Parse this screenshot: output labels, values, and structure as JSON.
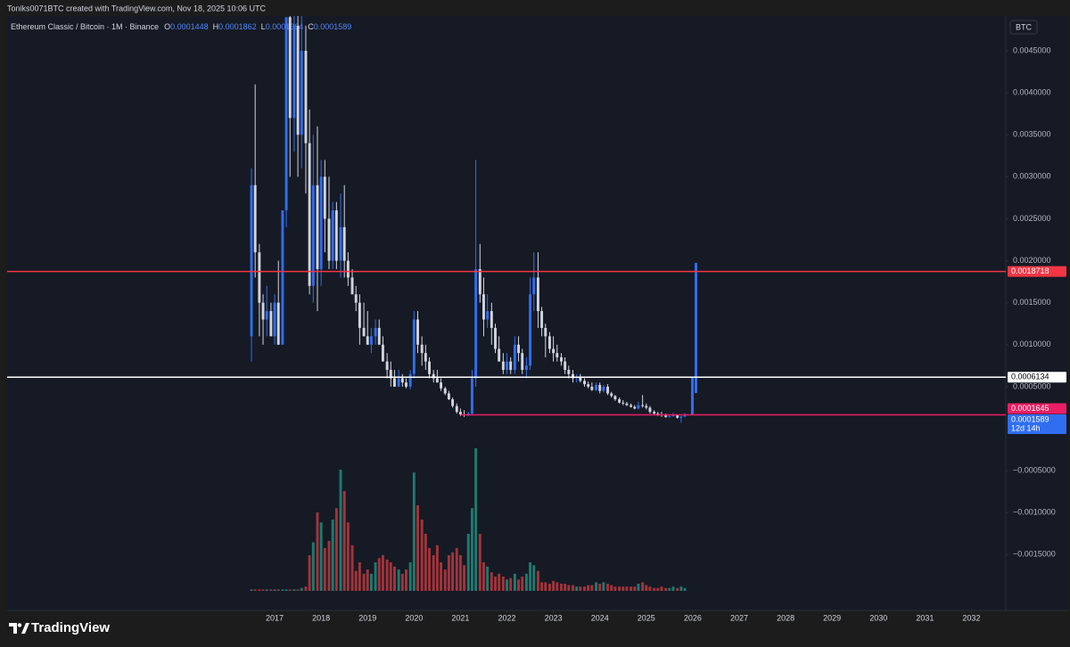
{
  "attribution": "Toniks0071BTC created with TradingView.com, Nov 18, 2025 10:06 UTC",
  "brand": "TradingView",
  "chart_data": {
    "type": "candlestick",
    "symbol": "Ethereum Classic / Bitcoin · 1M · Binance",
    "ohlc_labels": [
      "O",
      "H",
      "L",
      "C"
    ],
    "currency": "BTC",
    "countdown": "12d 14h",
    "up_color": "#2f6ef0",
    "down_color": "#d1d4dc",
    "volume_up_color": "#1f7a6f",
    "volume_down_color": "#a3343a",
    "xlim": [
      2011.24,
      2032.74
    ],
    "xticks": [
      2017,
      2018,
      2019,
      2020,
      2021,
      2022,
      2023,
      2024,
      2025,
      2026,
      2027,
      2028,
      2029,
      2030,
      2031,
      2032
    ],
    "ylim": [
      -0.002165,
      0.004914
    ],
    "yticks": [
      {
        "value": 0.0045,
        "label": "0.0045000"
      },
      {
        "value": 0.004,
        "label": "0.0040000"
      },
      {
        "value": 0.0035,
        "label": "0.0035000"
      },
      {
        "value": 0.003,
        "label": "0.0030000"
      },
      {
        "value": 0.0025,
        "label": "0.0025000"
      },
      {
        "value": 0.002,
        "label": "0.0020000"
      },
      {
        "value": 0.0015,
        "label": "0.0015000"
      },
      {
        "value": 0.001,
        "label": "0.0010000"
      },
      {
        "value": 0.0005,
        "label": "0.0005000"
      },
      {
        "value": -0.0005,
        "label": "−0.0005000"
      },
      {
        "value": -0.001,
        "label": "−0.0010000"
      },
      {
        "value": -0.0015,
        "label": "−0.0015000"
      }
    ],
    "levels": [
      {
        "value": 0.0018718,
        "color": "#f23645",
        "text_color": "#ffffff"
      },
      {
        "value": 0.0006134,
        "color": "#ffffff",
        "text_color": "#000000"
      },
      {
        "value": 0.0001645,
        "color": "#e91e63",
        "text_color": "#ffffff",
        "x_start": 2021.0
      }
    ],
    "candles": [
      {
        "x": 2016.5,
        "open": 0.0011,
        "high": 0.0031,
        "low": 0.0008,
        "close": 0.0029,
        "volume": 1
      },
      {
        "x": 2016.58,
        "open": 0.0029,
        "high": 0.0041,
        "low": 0.0018,
        "close": 0.0021,
        "volume": 1
      },
      {
        "x": 2016.67,
        "open": 0.0021,
        "high": 0.0022,
        "low": 0.0011,
        "close": 0.0015,
        "volume": 1
      },
      {
        "x": 2016.75,
        "open": 0.0015,
        "high": 0.0016,
        "low": 0.001,
        "close": 0.0013,
        "volume": 1
      },
      {
        "x": 2016.83,
        "open": 0.0013,
        "high": 0.0017,
        "low": 0.0011,
        "close": 0.0014,
        "volume": 1
      },
      {
        "x": 2016.92,
        "open": 0.0014,
        "high": 0.0015,
        "low": 0.0011,
        "close": 0.0011,
        "volume": 1
      },
      {
        "x": 2017,
        "open": 0.0011,
        "high": 0.0016,
        "low": 0.001,
        "close": 0.0015,
        "volume": 1
      },
      {
        "x": 2017.08,
        "open": 0.0015,
        "high": 0.002,
        "low": 0.001,
        "close": 0.001,
        "volume": 1
      },
      {
        "x": 2017.17,
        "open": 0.001,
        "high": 0.0026,
        "low": 0.001,
        "close": 0.0026,
        "volume": 1
      },
      {
        "x": 2017.25,
        "open": 0.0026,
        "high": 0.0049,
        "low": 0.0024,
        "close": 0.0049,
        "volume": 1
      },
      {
        "x": 2017.33,
        "open": 0.0049,
        "high": 0.0052,
        "low": 0.003,
        "close": 0.0037,
        "volume": 1
      },
      {
        "x": 2017.42,
        "open": 0.0037,
        "high": 0.0052,
        "low": 0.0033,
        "close": 0.0048,
        "volume": 1
      },
      {
        "x": 2017.5,
        "open": 0.0048,
        "high": 0.0052,
        "low": 0.003,
        "close": 0.0035,
        "volume": 1
      },
      {
        "x": 2017.58,
        "open": 0.0035,
        "high": 0.005,
        "low": 0.0031,
        "close": 0.0045,
        "volume": 2
      },
      {
        "x": 2017.67,
        "open": 0.0045,
        "high": 0.0048,
        "low": 0.0028,
        "close": 0.0034,
        "volume": 3
      },
      {
        "x": 2017.75,
        "open": 0.0034,
        "high": 0.0038,
        "low": 0.0016,
        "close": 0.0017,
        "volume": 25
      },
      {
        "x": 2017.83,
        "open": 0.0017,
        "high": 0.0035,
        "low": 0.0015,
        "close": 0.0029,
        "volume": 34
      },
      {
        "x": 2017.92,
        "open": 0.0029,
        "high": 0.0036,
        "low": 0.0014,
        "close": 0.0019,
        "volume": 55
      },
      {
        "x": 2018,
        "open": 0.0019,
        "high": 0.0032,
        "low": 0.0017,
        "close": 0.003,
        "volume": 48
      },
      {
        "x": 2018.08,
        "open": 0.003,
        "high": 0.0032,
        "low": 0.0021,
        "close": 0.0025,
        "volume": 30
      },
      {
        "x": 2018.17,
        "open": 0.0025,
        "high": 0.003,
        "low": 0.0019,
        "close": 0.002,
        "volume": 35
      },
      {
        "x": 2018.25,
        "open": 0.002,
        "high": 0.0027,
        "low": 0.0019,
        "close": 0.0026,
        "volume": 50
      },
      {
        "x": 2018.33,
        "open": 0.0026,
        "high": 0.0027,
        "low": 0.0019,
        "close": 0.002,
        "volume": 58
      },
      {
        "x": 2018.42,
        "open": 0.002,
        "high": 0.0028,
        "low": 0.0018,
        "close": 0.0024,
        "volume": 85
      },
      {
        "x": 2018.5,
        "open": 0.0024,
        "high": 0.0029,
        "low": 0.0018,
        "close": 0.002,
        "volume": 70
      },
      {
        "x": 2018.58,
        "open": 0.002,
        "high": 0.0021,
        "low": 0.0017,
        "close": 0.0018,
        "volume": 48
      },
      {
        "x": 2018.67,
        "open": 0.0018,
        "high": 0.0019,
        "low": 0.0016,
        "close": 0.0016,
        "volume": 32
      },
      {
        "x": 2018.75,
        "open": 0.0016,
        "high": 0.0017,
        "low": 0.0014,
        "close": 0.0015,
        "volume": 14
      },
      {
        "x": 2018.83,
        "open": 0.0015,
        "high": 0.0016,
        "low": 0.001,
        "close": 0.0012,
        "volume": 20
      },
      {
        "x": 2018.92,
        "open": 0.0012,
        "high": 0.0015,
        "low": 0.0011,
        "close": 0.0011,
        "volume": 12
      },
      {
        "x": 2019,
        "open": 0.0011,
        "high": 0.0014,
        "low": 0.001,
        "close": 0.001,
        "volume": 15
      },
      {
        "x": 2019.08,
        "open": 0.001,
        "high": 0.0012,
        "low": 0.0009,
        "close": 0.0011,
        "volume": 12
      },
      {
        "x": 2019.17,
        "open": 0.0011,
        "high": 0.0013,
        "low": 0.001,
        "close": 0.0012,
        "volume": 20
      },
      {
        "x": 2019.25,
        "open": 0.0012,
        "high": 0.0013,
        "low": 0.001,
        "close": 0.001,
        "volume": 23
      },
      {
        "x": 2019.33,
        "open": 0.001,
        "high": 0.0011,
        "low": 0.0008,
        "close": 0.0008,
        "volume": 25
      },
      {
        "x": 2019.42,
        "open": 0.0008,
        "high": 0.0009,
        "low": 0.0006,
        "close": 0.0007,
        "volume": 22
      },
      {
        "x": 2019.5,
        "open": 0.0007,
        "high": 0.0008,
        "low": 0.0005,
        "close": 0.0006,
        "volume": 20
      },
      {
        "x": 2019.58,
        "open": 0.0006,
        "high": 0.0007,
        "low": 0.0005,
        "close": 0.0005,
        "volume": 17
      },
      {
        "x": 2019.67,
        "open": 0.0005,
        "high": 0.0007,
        "low": 0.0005,
        "close": 0.0006,
        "volume": 15
      },
      {
        "x": 2019.75,
        "open": 0.0006,
        "high": 0.00065,
        "low": 0.0005,
        "close": 0.00055,
        "volume": 12
      },
      {
        "x": 2019.83,
        "open": 0.00055,
        "high": 0.0006,
        "low": 0.00048,
        "close": 0.0005,
        "volume": 15
      },
      {
        "x": 2019.92,
        "open": 0.0005,
        "high": 0.0007,
        "low": 0.00047,
        "close": 0.00065,
        "volume": 20
      },
      {
        "x": 2020,
        "open": 0.00065,
        "high": 0.0014,
        "low": 0.0006,
        "close": 0.0013,
        "volume": 83
      },
      {
        "x": 2020.08,
        "open": 0.0013,
        "high": 0.0014,
        "low": 0.0009,
        "close": 0.001,
        "volume": 60
      },
      {
        "x": 2020.17,
        "open": 0.001,
        "high": 0.0011,
        "low": 0.00075,
        "close": 0.0009,
        "volume": 50
      },
      {
        "x": 2020.25,
        "open": 0.0009,
        "high": 0.001,
        "low": 0.0007,
        "close": 0.0008,
        "volume": 40
      },
      {
        "x": 2020.33,
        "open": 0.0008,
        "high": 0.00085,
        "low": 0.0006,
        "close": 0.00065,
        "volume": 30
      },
      {
        "x": 2020.42,
        "open": 0.00065,
        "high": 0.0007,
        "low": 0.00055,
        "close": 0.0006,
        "volume": 25
      },
      {
        "x": 2020.5,
        "open": 0.0006,
        "high": 0.0007,
        "low": 0.00055,
        "close": 0.00055,
        "volume": 32
      },
      {
        "x": 2020.58,
        "open": 0.00055,
        "high": 0.0006,
        "low": 0.00045,
        "close": 0.00048,
        "volume": 20
      },
      {
        "x": 2020.67,
        "open": 0.00048,
        "high": 0.0005,
        "low": 0.0004,
        "close": 0.00042,
        "volume": 15
      },
      {
        "x": 2020.75,
        "open": 0.00042,
        "high": 0.00045,
        "low": 0.00034,
        "close": 0.00035,
        "volume": 25
      },
      {
        "x": 2020.83,
        "open": 0.00035,
        "high": 0.00037,
        "low": 0.00025,
        "close": 0.00027,
        "volume": 27
      },
      {
        "x": 2020.92,
        "open": 0.00027,
        "high": 0.0003,
        "low": 0.00018,
        "close": 0.0002,
        "volume": 30
      },
      {
        "x": 2021,
        "open": 0.0002,
        "high": 0.00024,
        "low": 0.00015,
        "close": 0.00017,
        "volume": 25
      },
      {
        "x": 2021.08,
        "open": 0.00017,
        "high": 0.00022,
        "low": 0.00014,
        "close": 0.00016,
        "volume": 18
      },
      {
        "x": 2021.17,
        "open": 0.00016,
        "high": 0.0002,
        "low": 0.00015,
        "close": 0.00018,
        "volume": 40
      },
      {
        "x": 2021.25,
        "open": 0.00018,
        "high": 0.0007,
        "low": 0.00017,
        "close": 0.0006,
        "volume": 58
      },
      {
        "x": 2021.33,
        "open": 0.0006,
        "high": 0.0032,
        "low": 0.0005,
        "close": 0.0019,
        "volume": 100
      },
      {
        "x": 2021.42,
        "open": 0.0019,
        "high": 0.0022,
        "low": 0.0015,
        "close": 0.0016,
        "volume": 40
      },
      {
        "x": 2021.5,
        "open": 0.0016,
        "high": 0.0018,
        "low": 0.0011,
        "close": 0.0013,
        "volume": 20
      },
      {
        "x": 2021.58,
        "open": 0.0013,
        "high": 0.0016,
        "low": 0.0012,
        "close": 0.0014,
        "volume": 17
      },
      {
        "x": 2021.67,
        "open": 0.0014,
        "high": 0.0015,
        "low": 0.001,
        "close": 0.0012,
        "volume": 13
      },
      {
        "x": 2021.75,
        "open": 0.0012,
        "high": 0.00125,
        "low": 0.0009,
        "close": 0.00095,
        "volume": 10
      },
      {
        "x": 2021.83,
        "open": 0.00095,
        "high": 0.0011,
        "low": 0.0008,
        "close": 0.0008,
        "volume": 12
      },
      {
        "x": 2021.92,
        "open": 0.0008,
        "high": 0.0009,
        "low": 0.00065,
        "close": 0.0007,
        "volume": 10
      },
      {
        "x": 2022,
        "open": 0.0007,
        "high": 0.0009,
        "low": 0.00065,
        "close": 0.0008,
        "volume": 8
      },
      {
        "x": 2022.08,
        "open": 0.0008,
        "high": 0.00085,
        "low": 0.00065,
        "close": 0.0007,
        "volume": 9
      },
      {
        "x": 2022.17,
        "open": 0.0007,
        "high": 0.0011,
        "low": 0.00065,
        "close": 0.001,
        "volume": 12
      },
      {
        "x": 2022.25,
        "open": 0.001,
        "high": 0.0011,
        "low": 0.0008,
        "close": 0.0009,
        "volume": 8
      },
      {
        "x": 2022.33,
        "open": 0.0009,
        "high": 0.00095,
        "low": 0.00065,
        "close": 0.0007,
        "volume": 10
      },
      {
        "x": 2022.42,
        "open": 0.0007,
        "high": 0.00085,
        "low": 0.0006,
        "close": 0.00075,
        "volume": 12
      },
      {
        "x": 2022.5,
        "open": 0.00075,
        "high": 0.0018,
        "low": 0.0007,
        "close": 0.0016,
        "volume": 20
      },
      {
        "x": 2022.58,
        "open": 0.0016,
        "high": 0.0021,
        "low": 0.0014,
        "close": 0.0018,
        "volume": 18
      },
      {
        "x": 2022.67,
        "open": 0.0018,
        "high": 0.0021,
        "low": 0.0012,
        "close": 0.0014,
        "volume": 14
      },
      {
        "x": 2022.75,
        "open": 0.0014,
        "high": 0.00145,
        "low": 0.0011,
        "close": 0.0012,
        "volume": 6
      },
      {
        "x": 2022.83,
        "open": 0.0012,
        "high": 0.00125,
        "low": 0.00085,
        "close": 0.0011,
        "volume": 6
      },
      {
        "x": 2022.92,
        "open": 0.0011,
        "high": 0.00115,
        "low": 0.0009,
        "close": 0.00095,
        "volume": 5
      },
      {
        "x": 2023,
        "open": 0.00095,
        "high": 0.0011,
        "low": 0.0008,
        "close": 0.0009,
        "volume": 7
      },
      {
        "x": 2023.08,
        "open": 0.0009,
        "high": 0.001,
        "low": 0.0008,
        "close": 0.00085,
        "volume": 6
      },
      {
        "x": 2023.17,
        "open": 0.00085,
        "high": 0.0009,
        "low": 0.00075,
        "close": 0.0008,
        "volume": 5
      },
      {
        "x": 2023.25,
        "open": 0.0008,
        "high": 0.00085,
        "low": 0.00065,
        "close": 0.0007,
        "volume": 5
      },
      {
        "x": 2023.33,
        "open": 0.0007,
        "high": 0.00075,
        "low": 0.0006,
        "close": 0.00065,
        "volume": 4
      },
      {
        "x": 2023.42,
        "open": 0.00065,
        "high": 0.0007,
        "low": 0.00055,
        "close": 0.0006,
        "volume": 4
      },
      {
        "x": 2023.5,
        "open": 0.0006,
        "high": 0.00065,
        "low": 0.00055,
        "close": 0.00062,
        "volume": 3
      },
      {
        "x": 2023.58,
        "open": 0.00062,
        "high": 0.00065,
        "low": 0.00055,
        "close": 0.00057,
        "volume": 3
      },
      {
        "x": 2023.67,
        "open": 0.00057,
        "high": 0.0006,
        "low": 0.0005,
        "close": 0.00053,
        "volume": 3
      },
      {
        "x": 2023.75,
        "open": 0.00053,
        "high": 0.00056,
        "low": 0.00048,
        "close": 0.0005,
        "volume": 4
      },
      {
        "x": 2023.83,
        "open": 0.0005,
        "high": 0.00055,
        "low": 0.00045,
        "close": 0.00046,
        "volume": 4
      },
      {
        "x": 2023.92,
        "open": 0.00046,
        "high": 0.00055,
        "low": 0.00045,
        "close": 0.00052,
        "volume": 6
      },
      {
        "x": 2024,
        "open": 0.00052,
        "high": 0.00055,
        "low": 0.00042,
        "close": 0.00045,
        "volume": 5
      },
      {
        "x": 2024.08,
        "open": 0.00045,
        "high": 0.00052,
        "low": 0.00043,
        "close": 0.0005,
        "volume": 6
      },
      {
        "x": 2024.17,
        "open": 0.0005,
        "high": 0.00053,
        "low": 0.0004,
        "close": 0.00042,
        "volume": 5
      },
      {
        "x": 2024.25,
        "open": 0.00042,
        "high": 0.00044,
        "low": 0.00037,
        "close": 0.00039,
        "volume": 4
      },
      {
        "x": 2024.33,
        "open": 0.00039,
        "high": 0.0004,
        "low": 0.00033,
        "close": 0.00035,
        "volume": 3
      },
      {
        "x": 2024.42,
        "open": 0.00035,
        "high": 0.00037,
        "low": 0.0003,
        "close": 0.00031,
        "volume": 3
      },
      {
        "x": 2024.5,
        "open": 0.00031,
        "high": 0.00034,
        "low": 0.00028,
        "close": 0.0003,
        "volume": 3
      },
      {
        "x": 2024.58,
        "open": 0.0003,
        "high": 0.00032,
        "low": 0.00027,
        "close": 0.00028,
        "volume": 3
      },
      {
        "x": 2024.67,
        "open": 0.00028,
        "high": 0.0003,
        "low": 0.00025,
        "close": 0.00026,
        "volume": 3
      },
      {
        "x": 2024.75,
        "open": 0.00026,
        "high": 0.00028,
        "low": 0.00023,
        "close": 0.00024,
        "volume": 3
      },
      {
        "x": 2024.83,
        "open": 0.00024,
        "high": 0.00032,
        "low": 0.00023,
        "close": 0.00028,
        "volume": 5
      },
      {
        "x": 2024.92,
        "open": 0.00028,
        "high": 0.0004,
        "low": 0.00025,
        "close": 0.00027,
        "volume": 6
      },
      {
        "x": 2025,
        "open": 0.00027,
        "high": 0.0003,
        "low": 0.00023,
        "close": 0.00025,
        "volume": 4
      },
      {
        "x": 2025.08,
        "open": 0.00025,
        "high": 0.00027,
        "low": 0.00018,
        "close": 0.0002,
        "volume": 3
      },
      {
        "x": 2025.17,
        "open": 0.0002,
        "high": 0.00022,
        "low": 0.00016,
        "close": 0.00018,
        "volume": 2
      },
      {
        "x": 2025.25,
        "open": 0.00018,
        "high": 0.0002,
        "low": 0.00015,
        "close": 0.00017,
        "volume": 2
      },
      {
        "x": 2025.33,
        "open": 0.00017,
        "high": 0.0002,
        "low": 0.00014,
        "close": 0.00016,
        "volume": 3
      },
      {
        "x": 2025.42,
        "open": 0.00016,
        "high": 0.00018,
        "low": 0.00013,
        "close": 0.00014,
        "volume": 2
      },
      {
        "x": 2025.5,
        "open": 0.00014,
        "high": 0.00017,
        "low": 0.00013,
        "close": 0.00015,
        "volume": 2
      },
      {
        "x": 2025.58,
        "open": 0.00015,
        "high": 0.00019,
        "low": 0.00014,
        "close": 0.00016,
        "volume": 3
      },
      {
        "x": 2025.67,
        "open": 0.00016,
        "high": 0.00017,
        "low": 0.00012,
        "close": 0.00013,
        "volume": 2
      },
      {
        "x": 2025.75,
        "open": 0.00013,
        "high": 0.00015,
        "low": 7e-05,
        "close": 0.0001448,
        "volume": 3
      },
      {
        "x": 2025.83,
        "open": 0.0001448,
        "high": 0.0001862,
        "low": 0.0001364,
        "close": 0.0001589,
        "volume": 2
      }
    ]
  }
}
